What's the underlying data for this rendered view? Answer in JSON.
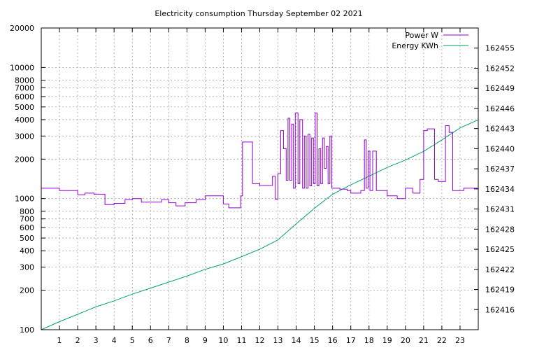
{
  "chart_data": {
    "type": "line",
    "title": "Electricity consumption Thursday September 02 2021",
    "xlabel": "",
    "ylabel": "",
    "y2label": "",
    "grid": true,
    "legend_position": "top-right",
    "x_axis": {
      "range": [
        0,
        24
      ],
      "ticks": [
        1,
        2,
        3,
        4,
        5,
        6,
        7,
        8,
        9,
        10,
        11,
        12,
        13,
        14,
        15,
        16,
        17,
        18,
        19,
        20,
        21,
        22,
        23
      ],
      "tick_labels": [
        "1",
        "2",
        "3",
        "4",
        "5",
        "6",
        "7",
        "8",
        "9",
        "10",
        "11",
        "12",
        "13",
        "14",
        "15",
        "16",
        "17",
        "18",
        "19",
        "20",
        "21",
        "22",
        "23"
      ]
    },
    "y_axis": {
      "scale": "log",
      "range": [
        100,
        20000
      ],
      "ticks": [
        100,
        200,
        300,
        400,
        500,
        600,
        700,
        800,
        1000,
        2000,
        3000,
        4000,
        5000,
        6000,
        7000,
        8000,
        10000,
        20000
      ],
      "tick_labels": [
        "100",
        "200",
        "300",
        "400",
        "500",
        "600",
        "700",
        "800",
        "1000",
        "2000",
        "3000",
        "4000",
        "5000",
        "6000",
        "7000",
        "8000",
        "10000",
        "20000"
      ]
    },
    "y2_axis": {
      "scale": "linear",
      "range": [
        162413,
        162458
      ],
      "ticks": [
        162416,
        162419,
        162422,
        162425,
        162428,
        162431,
        162434,
        162437,
        162440,
        162443,
        162446,
        162449,
        162452,
        162455
      ],
      "tick_labels": [
        "162416",
        "162419",
        "162422",
        "162425",
        "162428",
        "162431",
        "162434",
        "162437",
        "162440",
        "162443",
        "162446",
        "162449",
        "162452",
        "162455"
      ]
    },
    "series": [
      {
        "name": "Power W",
        "axis": "y",
        "color": "#9400d3",
        "style": "step",
        "x": [
          0.0,
          0.6,
          1.0,
          1.5,
          2.0,
          2.4,
          2.9,
          3.5,
          4.0,
          4.6,
          5.0,
          5.5,
          6.0,
          6.6,
          7.0,
          7.4,
          7.9,
          8.5,
          9.0,
          9.5,
          10.0,
          10.3,
          10.8,
          10.95,
          11.05,
          11.6,
          12.0,
          12.15,
          12.7,
          12.85,
          13.0,
          13.15,
          13.3,
          13.45,
          13.55,
          13.65,
          13.75,
          13.85,
          13.95,
          14.1,
          14.2,
          14.35,
          14.45,
          14.55,
          14.65,
          14.75,
          14.85,
          14.95,
          15.05,
          15.15,
          15.25,
          15.35,
          15.45,
          15.55,
          15.65,
          15.75,
          15.85,
          15.95,
          16.1,
          16.25,
          16.4,
          16.6,
          16.8,
          17.0,
          17.3,
          17.55,
          17.75,
          17.85,
          17.95,
          18.05,
          18.2,
          18.4,
          18.6,
          18.8,
          19.0,
          19.15,
          19.35,
          19.55,
          19.75,
          20.0,
          20.2,
          20.4,
          20.6,
          20.8,
          21.0,
          21.2,
          21.6,
          21.8,
          22.0,
          22.2,
          22.4,
          22.6,
          22.8,
          23.0,
          23.2,
          23.4,
          23.6,
          23.8,
          24.0
        ],
        "values": [
          1200,
          1200,
          1150,
          1150,
          1070,
          1100,
          1080,
          900,
          920,
          980,
          1000,
          940,
          940,
          980,
          930,
          880,
          930,
          980,
          1050,
          1050,
          910,
          850,
          850,
          1050,
          2700,
          1300,
          1260,
          1260,
          1480,
          990,
          1550,
          3300,
          2400,
          1380,
          4100,
          1380,
          3700,
          1200,
          4500,
          1300,
          4000,
          1200,
          3000,
          1200,
          3100,
          1250,
          2900,
          1300,
          4500,
          1250,
          2400,
          1300,
          2900,
          1700,
          2500,
          1300,
          3000,
          1200,
          1200,
          1200,
          1180,
          1180,
          1150,
          1100,
          1100,
          1150,
          2800,
          1200,
          2300,
          1150,
          2300,
          1150,
          1150,
          1150,
          1050,
          1050,
          1050,
          1000,
          1000,
          1200,
          1200,
          1100,
          1100,
          1400,
          3300,
          3400,
          1400,
          1350,
          1350,
          3600,
          3200,
          1150,
          1150,
          1150,
          1200,
          1200,
          1200,
          1200,
          1200
        ]
      },
      {
        "name": "Energy KWh",
        "axis": "y2",
        "color": "#009e73",
        "style": "line",
        "x": [
          0,
          1,
          2,
          3,
          4,
          5,
          6,
          7,
          8,
          9,
          10,
          11,
          12,
          13,
          14,
          15,
          16,
          17,
          18,
          19,
          20,
          21,
          22,
          23,
          24
        ],
        "values": [
          162413.0,
          162414.2,
          162415.3,
          162416.4,
          162417.3,
          162418.3,
          162419.2,
          162420.1,
          162421.0,
          162422.0,
          162422.8,
          162423.9,
          162425.0,
          162426.4,
          162428.8,
          162431.1,
          162433.2,
          162434.6,
          162435.9,
          162437.2,
          162438.3,
          162439.6,
          162441.3,
          162443.1,
          162444.3
        ]
      }
    ]
  }
}
